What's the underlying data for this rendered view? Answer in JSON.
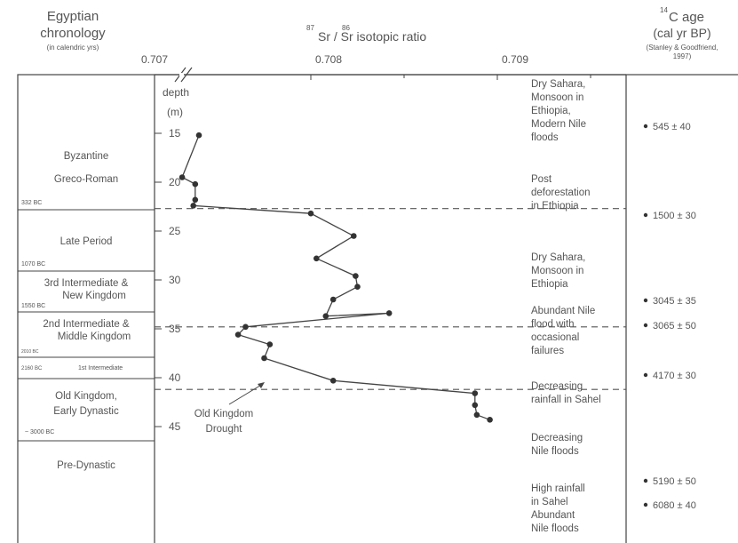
{
  "header": {
    "egypt_title_1": "Egyptian",
    "egypt_title_2": "chronology",
    "egypt_sub": "(in calendric yrs)",
    "sr_label": "Sr / Sr  isotopic ratio",
    "sr_sup1": "87",
    "sr_sup2": "86",
    "c14_sup": "14",
    "c14_label": "C age",
    "c14_unit": "(cal yr BP)",
    "c14_src_1": "(Stanley & Goodfriend,",
    "c14_src_2": "1997)"
  },
  "periods": [
    {
      "label": "Byzantine"
    },
    {
      "label": "Greco-Roman"
    },
    {
      "label": "Late Period"
    },
    {
      "label": "3rd Intermediate &"
    },
    {
      "label": "New Kingdom"
    },
    {
      "label": "2nd Intermediate &"
    },
    {
      "label": "Middle Kingdom"
    },
    {
      "label": "1st Intermediate"
    },
    {
      "label": "Old Kingdom,"
    },
    {
      "label": "Early Dynastic"
    },
    {
      "label": "Pre-Dynastic"
    }
  ],
  "period_dates": [
    "332 BC",
    "1070 BC",
    "1550 BC",
    "2010 BC",
    "2160 BC",
    "~ 3000 BC"
  ],
  "climate_notes": [
    [
      "Dry Sahara,",
      "Monsoon in",
      "Ethiopia,",
      "Modern Nile",
      "floods"
    ],
    [
      "Post",
      "deforestation",
      "in Ethiopia"
    ],
    [
      "Dry Sahara,",
      "Monsoon in",
      "Ethiopia"
    ],
    [
      "Abundant Nile",
      "flood with",
      "occasional",
      "failures"
    ],
    [
      "Decreasing",
      "rainfall in Sahel"
    ],
    [
      "Decreasing",
      "Nile floods"
    ],
    [
      "High rainfall",
      "in Sahel"
    ],
    [
      "Abundant",
      "Nile floods"
    ]
  ],
  "c14_ages": [
    "545 ± 40",
    "1500 ± 30",
    "3045 ± 35",
    "3065 ± 50",
    "4170 ± 30",
    "5190 ± 50",
    "6080 ± 40"
  ],
  "annotation": [
    "Old Kingdom",
    "Drought"
  ],
  "colors": {
    "ink": "#555555",
    "line": "#444444",
    "point": "#333333"
  },
  "chart_data": {
    "type": "line",
    "title": "",
    "xlabel": "87Sr/86Sr isotopic ratio",
    "ylabel": "depth (m)",
    "x_ticks": [
      "0.707",
      "0.708",
      "0.709"
    ],
    "y_ticks": [
      "15",
      "20",
      "25",
      "30",
      "35",
      "40",
      "45"
    ],
    "xlim": [
      0.707,
      0.7095
    ],
    "ylim": [
      12.5,
      47
    ],
    "axis_break": true,
    "series": [
      {
        "points": [
          [
            0.7074,
            15.2
          ],
          [
            0.70731,
            19.5
          ],
          [
            0.70738,
            20.2
          ],
          [
            0.70738,
            21.8
          ],
          [
            0.70737,
            22.4
          ],
          [
            0.708,
            23.2
          ],
          [
            0.70823,
            25.5
          ],
          [
            0.70803,
            27.8
          ],
          [
            0.70824,
            29.6
          ],
          [
            0.70825,
            30.7
          ],
          [
            0.70812,
            32.0
          ],
          [
            0.70808,
            33.7
          ],
          [
            0.70842,
            33.4
          ],
          [
            0.70765,
            34.8
          ],
          [
            0.70761,
            35.6
          ],
          [
            0.70778,
            36.6
          ],
          [
            0.70775,
            38.0
          ],
          [
            0.70812,
            40.3
          ],
          [
            0.70888,
            41.6
          ],
          [
            0.70888,
            42.8
          ],
          [
            0.70889,
            43.8
          ],
          [
            0.70896,
            44.3
          ]
        ]
      }
    ],
    "dashed_depths": [
      22.7,
      34.8,
      41.2
    ],
    "grid": false
  }
}
